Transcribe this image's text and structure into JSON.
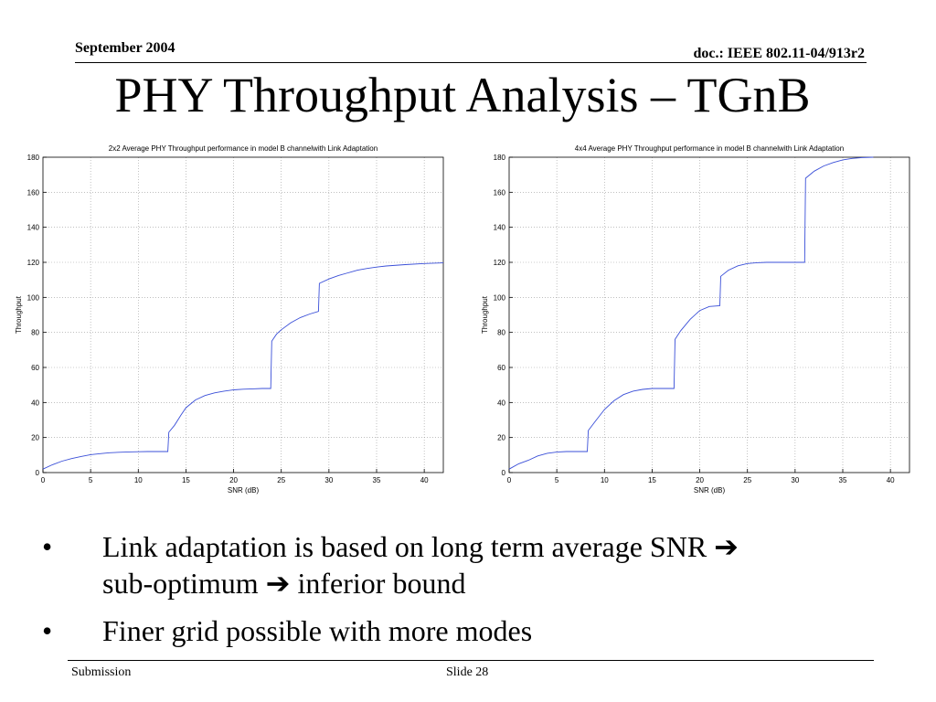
{
  "header": {
    "date": "September 2004",
    "doc": "doc.: IEEE 802.11-04/913r2"
  },
  "title": "PHY Throughput Analysis – TGnB",
  "bullets": [
    {
      "marker": "•",
      "parts": [
        "Link adaptation is based on long term average SNR ",
        " sub-optimum ",
        " inferior bound"
      ],
      "arrow": "➔"
    },
    {
      "marker": "•",
      "parts": [
        "Finer grid possible with more modes"
      ]
    }
  ],
  "footer": {
    "left": "Submission",
    "center": "Slide 28"
  },
  "colors": {
    "line": "#3a4fd8"
  },
  "chart_data": [
    {
      "type": "line",
      "title": "2x2 Average PHY Throughput performance in model B channelwith Link Adaptation",
      "xlabel": "SNR (dB)",
      "ylabel": "Throughput",
      "xlim": [
        0,
        42
      ],
      "ylim": [
        0,
        180
      ],
      "xticks": [
        0,
        5,
        10,
        15,
        20,
        25,
        30,
        35,
        40
      ],
      "yticks": [
        0,
        20,
        40,
        60,
        80,
        100,
        120,
        140,
        160,
        180
      ],
      "grid": true,
      "series": [
        {
          "x": [
            0,
            1,
            2,
            3,
            4,
            5,
            6,
            7,
            8,
            9,
            10,
            11,
            12,
            13.1,
            13.2,
            13.8,
            14.5,
            15,
            16,
            17,
            18,
            19,
            20,
            21,
            22,
            23,
            23.9,
            24,
            24.5,
            25,
            26,
            27,
            28,
            28.9,
            29,
            30,
            31,
            32,
            33,
            34,
            35,
            36,
            38,
            40,
            42
          ],
          "y": [
            2,
            4.5,
            6.5,
            8,
            9.2,
            10.2,
            10.8,
            11.3,
            11.6,
            11.8,
            11.9,
            12,
            12,
            12,
            23,
            27,
            33,
            37,
            41.5,
            44,
            45.5,
            46.5,
            47.2,
            47.6,
            47.8,
            48,
            48,
            75,
            79,
            81.5,
            85.5,
            88.5,
            90.5,
            92,
            108,
            110.5,
            112.5,
            114,
            115.5,
            116.5,
            117.3,
            117.9,
            118.7,
            119.3,
            119.7
          ]
        }
      ]
    },
    {
      "type": "line",
      "title": "4x4 Average PHY Throughput performance in model B channelwith Link Adaptation",
      "xlabel": "SNR (dB)",
      "ylabel": "Throughput",
      "xlim": [
        0,
        42
      ],
      "ylim": [
        0,
        180
      ],
      "xticks": [
        0,
        5,
        10,
        15,
        20,
        25,
        30,
        35,
        40
      ],
      "yticks": [
        0,
        20,
        40,
        60,
        80,
        100,
        120,
        140,
        160,
        180
      ],
      "grid": true,
      "series": [
        {
          "x": [
            0,
            1,
            2,
            3,
            4,
            5,
            6,
            7,
            8.2,
            8.3,
            9,
            10,
            11,
            12,
            13,
            14,
            15,
            16,
            17.3,
            17.4,
            18,
            19,
            20,
            21,
            22.1,
            22.2,
            23,
            24,
            25,
            26,
            27,
            28,
            29,
            30,
            31,
            31.1,
            32,
            33,
            34,
            35,
            36,
            37,
            38.2
          ],
          "y": [
            2,
            5,
            7,
            9.5,
            11,
            11.7,
            12,
            12,
            12,
            24,
            29,
            36,
            41,
            44.5,
            46.5,
            47.5,
            48,
            48,
            48,
            76,
            81,
            87.5,
            92.5,
            94.8,
            95.2,
            112,
            115.5,
            118,
            119.3,
            119.8,
            120,
            120,
            120,
            120,
            120,
            168,
            172,
            175,
            177,
            178.5,
            179.3,
            179.8,
            180
          ]
        }
      ]
    }
  ]
}
